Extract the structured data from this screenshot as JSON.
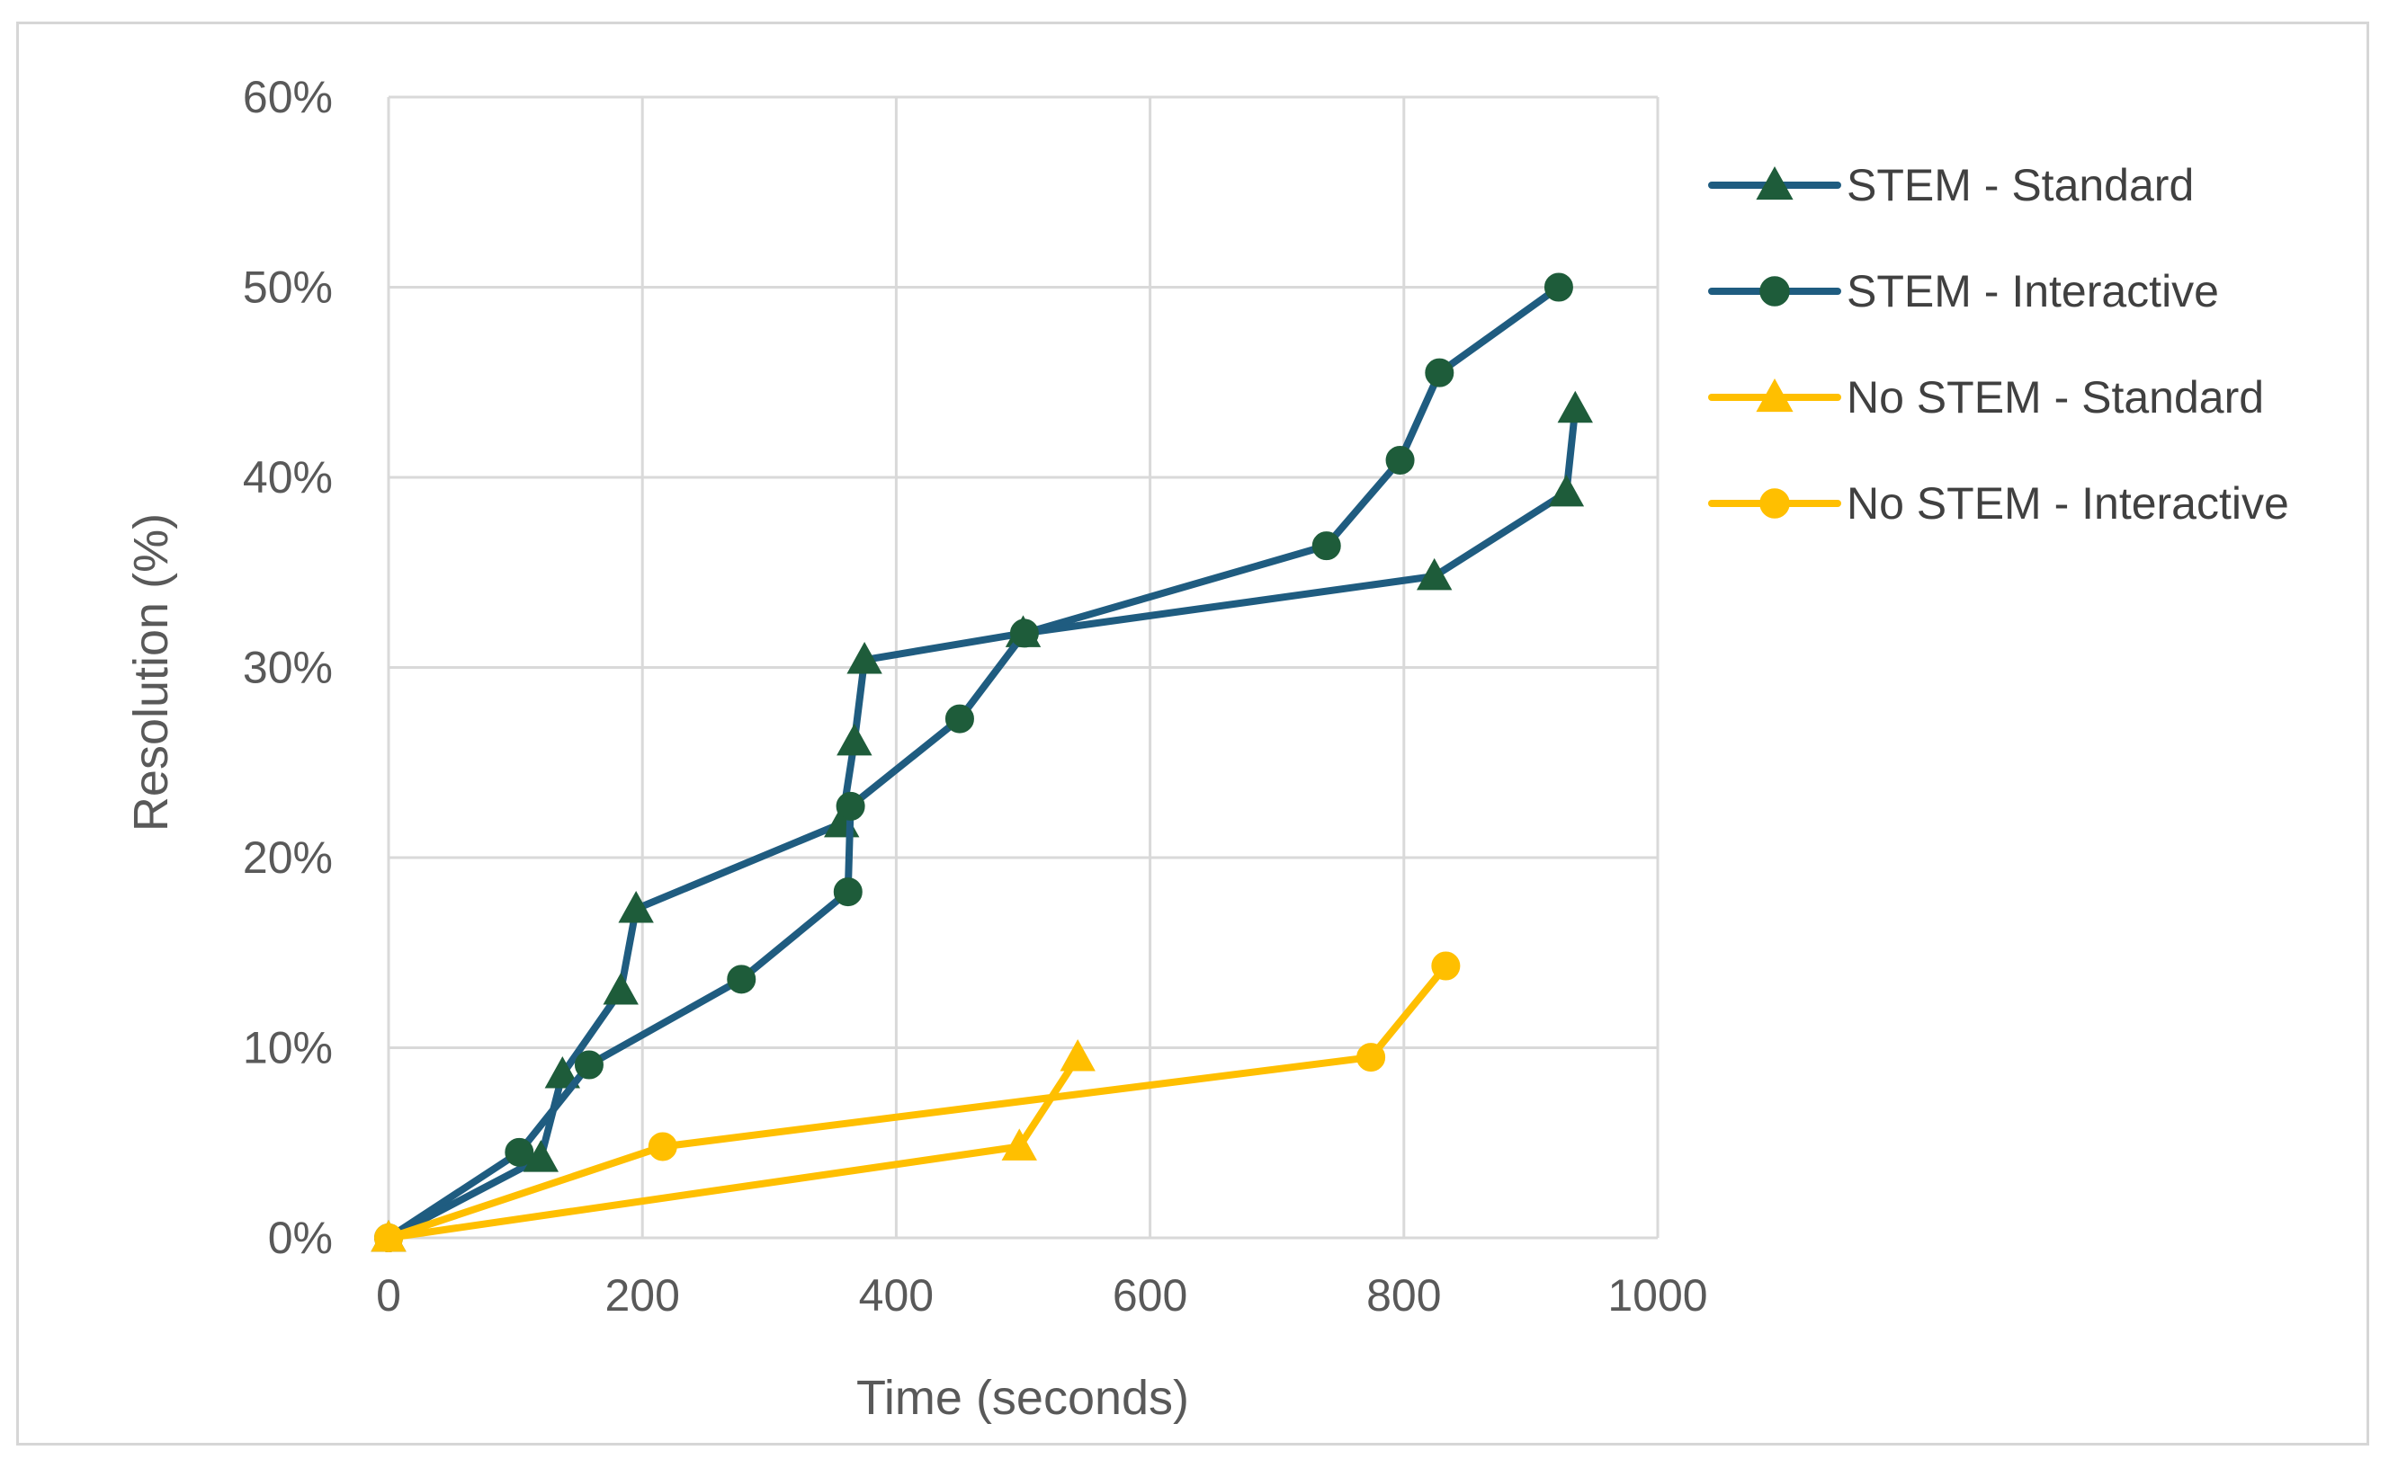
{
  "chart_data": {
    "type": "line",
    "title": "",
    "xlabel": "Time (seconds)",
    "ylabel": "Resolution (%)",
    "xlim": [
      0,
      1000
    ],
    "ylim": [
      0,
      60
    ],
    "x_ticks": [
      "0",
      "200",
      "400",
      "600",
      "800",
      "1000"
    ],
    "y_ticks": [
      "0%",
      "10%",
      "20%",
      "30%",
      "40%",
      "50%",
      "60%"
    ],
    "grid": true,
    "legend_position": "right",
    "series": [
      {
        "name": "STEM - Standard",
        "color": "#1f5c80",
        "marker": "triangle",
        "marker_color": "#1e5c3a",
        "points": [
          [
            0,
            0
          ],
          [
            120,
            4.2
          ],
          [
            137,
            8.6
          ],
          [
            183,
            13
          ],
          [
            195,
            17.3
          ],
          [
            357,
            21.8
          ],
          [
            367,
            26.1
          ],
          [
            375,
            30.4
          ],
          [
            500,
            31.8
          ],
          [
            824,
            34.8
          ],
          [
            928,
            39.2
          ],
          [
            935,
            43.6
          ]
        ]
      },
      {
        "name": "STEM - Interactive",
        "color": "#1f5c80",
        "marker": "circle",
        "marker_color": "#1e5c3a",
        "points": [
          [
            0,
            0
          ],
          [
            103,
            4.5
          ],
          [
            158,
            9.1
          ],
          [
            278,
            13.6
          ],
          [
            362,
            18.2
          ],
          [
            364,
            22.7
          ],
          [
            450,
            27.3
          ],
          [
            501,
            31.8
          ],
          [
            739,
            36.4
          ],
          [
            797,
            40.9
          ],
          [
            828,
            45.5
          ],
          [
            922,
            50
          ]
        ]
      },
      {
        "name": "No STEM - Standard",
        "color": "#ffbf00",
        "marker": "triangle",
        "marker_color": "#ffbf00",
        "points": [
          [
            0,
            0
          ],
          [
            497,
            4.8
          ],
          [
            543,
            9.5
          ]
        ]
      },
      {
        "name": "No STEM - Interactive",
        "color": "#ffbf00",
        "marker": "circle",
        "marker_color": "#ffbf00",
        "points": [
          [
            0,
            0
          ],
          [
            216,
            4.8
          ],
          [
            774,
            9.5
          ],
          [
            833,
            14.3
          ]
        ]
      }
    ]
  }
}
